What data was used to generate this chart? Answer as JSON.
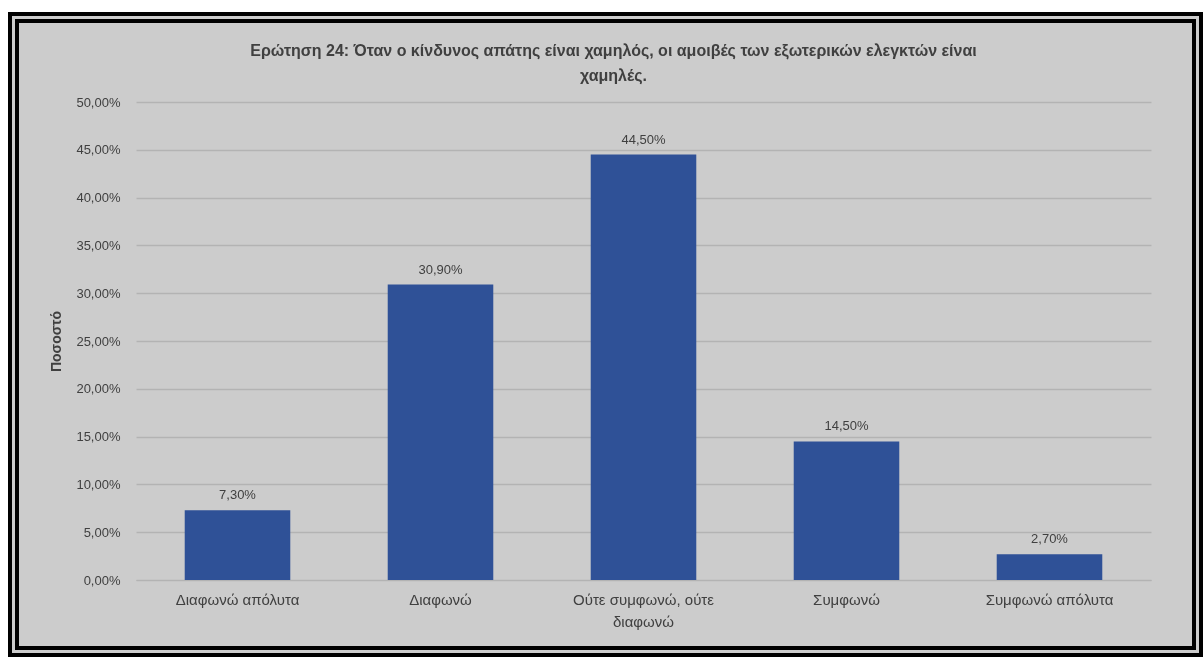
{
  "chart_data": {
    "type": "bar",
    "title": "Ερώτηση 24: Όταν ο κίνδυνος απάτης είναι χαμηλός, οι αμοιβές των εξωτερικών ελεγκτών είναι χαμηλές.",
    "ylabel": "Ποσοστό",
    "categories": [
      "Διαφωνώ απόλυτα",
      "Διαφωνώ",
      "Ούτε συμφωνώ, ούτε διαφωνώ",
      "Συμφωνώ",
      "Συμφωνώ απόλυτα"
    ],
    "values": [
      7.3,
      30.9,
      44.5,
      14.5,
      2.7
    ],
    "value_labels": [
      "7,30%",
      "30,90%",
      "44,50%",
      "14,50%",
      "2,70%"
    ],
    "color": "#2f5197",
    "ylim": [
      0,
      50
    ],
    "yticks": [
      {
        "value": 0,
        "label": "0,00%"
      },
      {
        "value": 5,
        "label": "5,00%"
      },
      {
        "value": 10,
        "label": "10,00%"
      },
      {
        "value": 15,
        "label": "15,00%"
      },
      {
        "value": 20,
        "label": "20,00%"
      },
      {
        "value": 25,
        "label": "25,00%"
      },
      {
        "value": 30,
        "label": "30,00%"
      },
      {
        "value": 35,
        "label": "35,00%"
      },
      {
        "value": 40,
        "label": "40,00%"
      },
      {
        "value": 45,
        "label": "45,00%"
      },
      {
        "value": 50,
        "label": "50,00%"
      }
    ],
    "grid": "y"
  }
}
